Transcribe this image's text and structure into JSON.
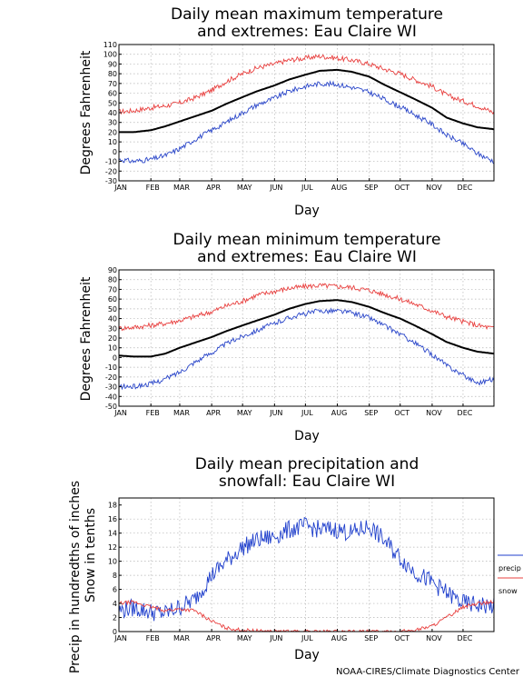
{
  "footer": {
    "credit": "NOAA-CIRES/Climate Diagnostics Center"
  },
  "colors": {
    "max": "#e8403f",
    "mean": "#000000",
    "min": "#2a46c9",
    "precip": "#1f3fcc",
    "snow": "#e8403f"
  },
  "chart_data": [
    {
      "type": "line",
      "title_lines": [
        "Daily mean maximum temperature",
        "and extremes: Eau Claire WI"
      ],
      "xlabel": "Day",
      "ylabel": "Degrees Fahrenheit",
      "x_ticks": [
        "JAN",
        "FEB",
        "MAR",
        "APR",
        "MAY",
        "JUN",
        "JUL",
        "AUG",
        "SEP",
        "OCT",
        "NOV",
        "DEC"
      ],
      "ylim": [
        -30,
        110
      ],
      "y_ticks": [
        -30,
        -20,
        -10,
        0,
        10,
        20,
        30,
        40,
        50,
        60,
        70,
        80,
        90,
        100,
        110
      ],
      "grid": true,
      "x": [
        1,
        15,
        32,
        46,
        60,
        74,
        91,
        105,
        121,
        135,
        152,
        166,
        182,
        196,
        213,
        227,
        244,
        258,
        274,
        288,
        305,
        319,
        335,
        349,
        365
      ],
      "series": [
        {
          "color": "max",
          "values": [
            41,
            42,
            45,
            47,
            50,
            55,
            63,
            72,
            80,
            86,
            90,
            94,
            96,
            98,
            96,
            94,
            90,
            85,
            80,
            74,
            67,
            58,
            52,
            47,
            40
          ]
        },
        {
          "color": "mean",
          "values": [
            20,
            20,
            22,
            26,
            31,
            36,
            42,
            49,
            56,
            62,
            68,
            74,
            79,
            83,
            84,
            82,
            77,
            69,
            61,
            54,
            45,
            35,
            29,
            25,
            23
          ]
        },
        {
          "color": "min",
          "values": [
            -8,
            -10,
            -8,
            -4,
            3,
            12,
            22,
            30,
            40,
            48,
            55,
            62,
            67,
            70,
            69,
            66,
            61,
            54,
            46,
            38,
            28,
            17,
            8,
            -2,
            -10
          ]
        }
      ]
    },
    {
      "type": "line",
      "title_lines": [
        "Daily mean minimum temperature",
        "and extremes: Eau Claire WI"
      ],
      "xlabel": "Day",
      "ylabel": "Degrees Fahrenheit",
      "x_ticks": [
        "JAN",
        "FEB",
        "MAR",
        "APR",
        "MAY",
        "JUN",
        "JUL",
        "AUG",
        "SEP",
        "OCT",
        "NOV",
        "DEC"
      ],
      "ylim": [
        -50,
        90
      ],
      "y_ticks": [
        -50,
        -40,
        -30,
        -20,
        -10,
        0,
        10,
        20,
        30,
        40,
        50,
        60,
        70,
        80,
        90
      ],
      "grid": true,
      "x": [
        1,
        15,
        32,
        46,
        60,
        74,
        91,
        105,
        121,
        135,
        152,
        166,
        182,
        196,
        213,
        227,
        244,
        258,
        274,
        288,
        305,
        319,
        335,
        349,
        365
      ],
      "series": [
        {
          "color": "max",
          "values": [
            30,
            31,
            33,
            35,
            38,
            42,
            47,
            53,
            58,
            64,
            68,
            71,
            73,
            74,
            73,
            72,
            69,
            65,
            60,
            55,
            48,
            42,
            37,
            33,
            30
          ]
        },
        {
          "color": "mean",
          "values": [
            2,
            1,
            1,
            4,
            10,
            15,
            21,
            27,
            33,
            38,
            44,
            50,
            55,
            58,
            59,
            57,
            52,
            46,
            40,
            33,
            24,
            16,
            10,
            6,
            4
          ]
        },
        {
          "color": "min",
          "values": [
            -30,
            -30,
            -27,
            -22,
            -15,
            -5,
            5,
            14,
            22,
            28,
            35,
            41,
            45,
            48,
            48,
            46,
            41,
            33,
            24,
            15,
            3,
            -8,
            -18,
            -26,
            -22
          ]
        }
      ]
    },
    {
      "type": "line",
      "title_lines": [
        "Daily mean precipitation and",
        "snowfall: Eau Claire WI"
      ],
      "xlabel": "Day",
      "ylabel_lines": [
        "Precip in hundredths of inches",
        "Snow in tenths"
      ],
      "x_ticks": [
        "JAN",
        "FEB",
        "MAR",
        "APR",
        "MAY",
        "JUN",
        "JUL",
        "AUG",
        "SEP",
        "OCT",
        "NOV",
        "DEC"
      ],
      "ylim": [
        0,
        19
      ],
      "y_ticks": [
        0,
        2,
        4,
        6,
        8,
        10,
        12,
        14,
        16,
        18
      ],
      "grid": true,
      "legend_position": "right",
      "x": [
        1,
        15,
        32,
        46,
        60,
        74,
        91,
        105,
        121,
        135,
        152,
        166,
        182,
        196,
        213,
        227,
        244,
        258,
        274,
        288,
        305,
        319,
        335,
        349,
        365
      ],
      "series": [
        {
          "name": "precip",
          "color": "precip",
          "values": [
            3.0,
            3.4,
            2.8,
            2.6,
            3.5,
            4.5,
            8.0,
            10.0,
            12.0,
            13.0,
            13.5,
            14.5,
            15.0,
            14.5,
            14.5,
            14.0,
            15.0,
            13.0,
            10.5,
            8.5,
            7.0,
            5.5,
            4.0,
            3.8,
            3.6
          ]
        },
        {
          "name": "snow",
          "color": "snow",
          "values": [
            4.0,
            4.2,
            3.5,
            3.0,
            3.2,
            3.0,
            1.5,
            0.5,
            0.2,
            0.1,
            0.0,
            0.0,
            0.0,
            0.0,
            0.0,
            0.0,
            0.0,
            0.0,
            0.0,
            0.2,
            0.8,
            2.0,
            3.5,
            4.0,
            4.2
          ]
        }
      ]
    }
  ]
}
